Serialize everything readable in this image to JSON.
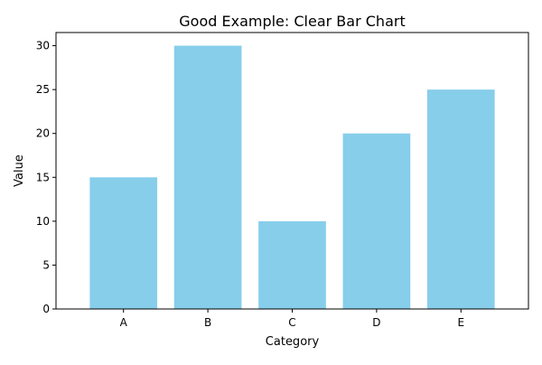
{
  "chart_data": {
    "type": "bar",
    "title": "Good Example: Clear Bar Chart",
    "xlabel": "Category",
    "ylabel": "Value",
    "categories": [
      "A",
      "B",
      "C",
      "D",
      "E"
    ],
    "values": [
      15,
      30,
      10,
      20,
      25
    ],
    "ylim": [
      0,
      31.5
    ],
    "yticks": [
      0,
      5,
      10,
      15,
      20,
      25,
      30
    ],
    "bar_color": "#87CEEB",
    "grid": false,
    "legend": "none"
  }
}
